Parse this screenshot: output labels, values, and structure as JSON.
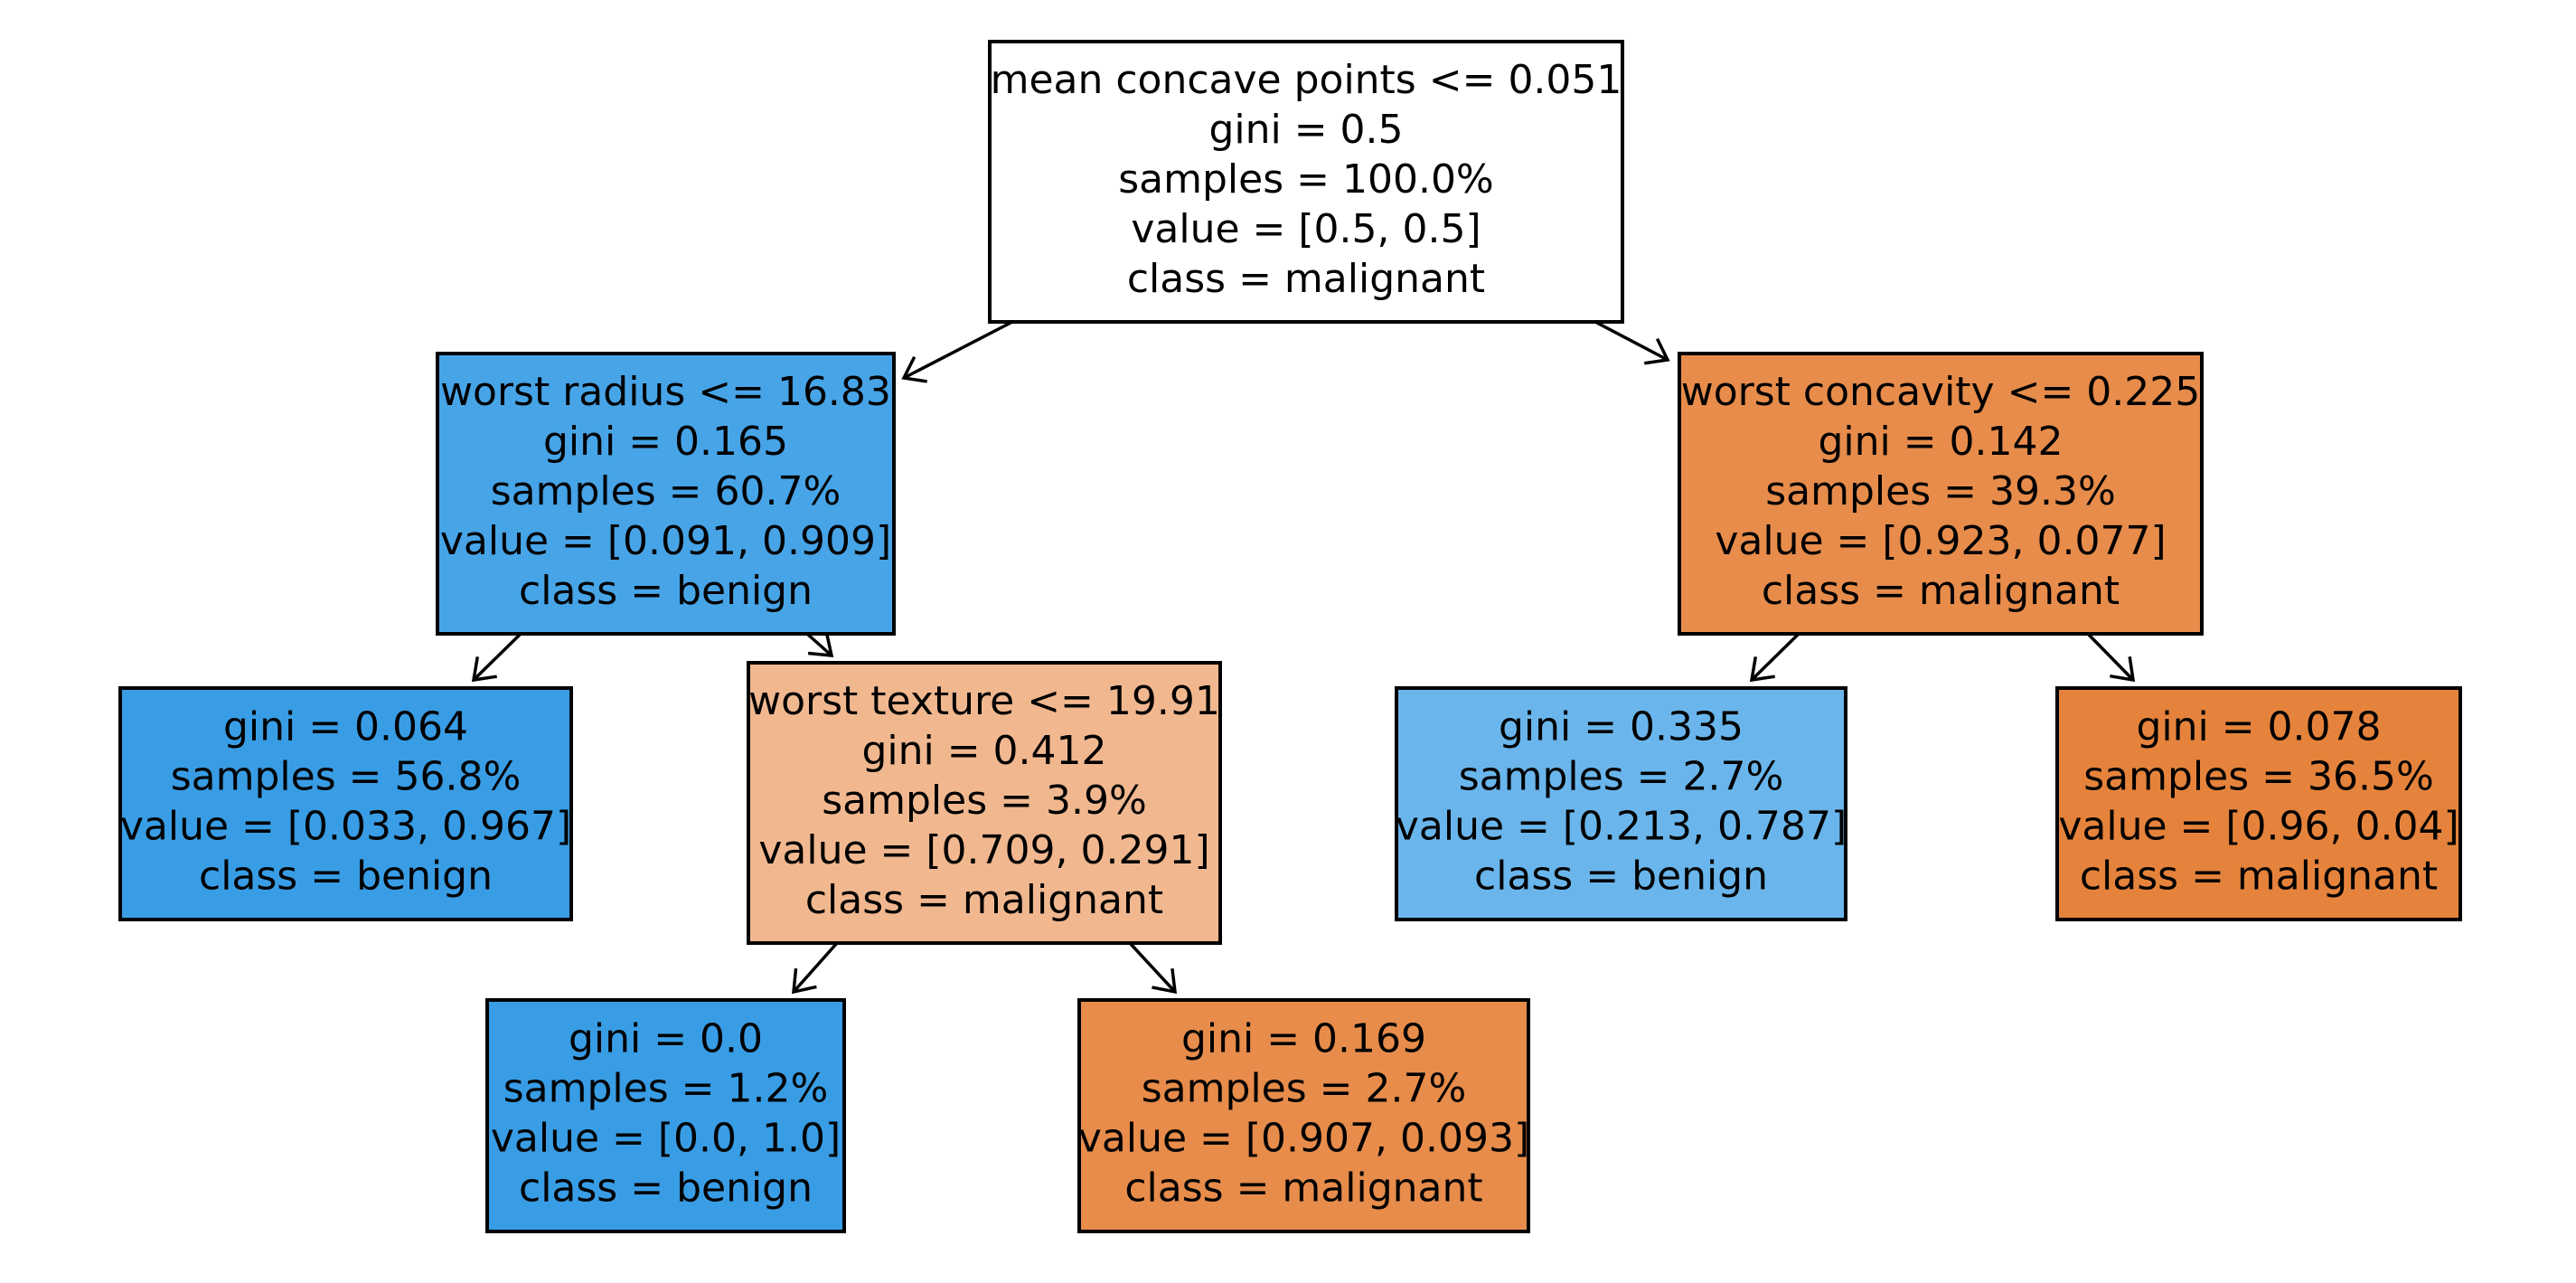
{
  "colors": {
    "benign_strong": "#399de5",
    "benign_mid": "#47a4e7",
    "benign_light": "#6ab6ec",
    "malignant_strong": "#e5833c",
    "malignant_mid": "#e78c4b",
    "malignant_light": "#f1b890",
    "neutral": "#ffffff",
    "border": "#000000"
  },
  "tree": {
    "root": {
      "lines": [
        "mean concave points <= 0.051",
        "gini = 0.5",
        "samples = 100.0%",
        "value = [0.5, 0.5]",
        "class = malignant"
      ]
    },
    "left": {
      "lines": [
        "worst radius <= 16.83",
        "gini = 0.165",
        "samples = 60.7%",
        "value = [0.091, 0.909]",
        "class = benign"
      ]
    },
    "right": {
      "lines": [
        "worst concavity <= 0.225",
        "gini = 0.142",
        "samples = 39.3%",
        "value = [0.923, 0.077]",
        "class = malignant"
      ]
    },
    "left_left": {
      "lines": [
        "gini = 0.064",
        "samples = 56.8%",
        "value = [0.033, 0.967]",
        "class = benign"
      ]
    },
    "left_right": {
      "lines": [
        "worst texture <= 19.91",
        "gini = 0.412",
        "samples = 3.9%",
        "value = [0.709, 0.291]",
        "class = malignant"
      ]
    },
    "right_left": {
      "lines": [
        "gini = 0.335",
        "samples = 2.7%",
        "value = [0.213, 0.787]",
        "class = benign"
      ]
    },
    "right_right": {
      "lines": [
        "gini = 0.078",
        "samples = 36.5%",
        "value = [0.96, 0.04]",
        "class = malignant"
      ]
    },
    "left_right_left": {
      "lines": [
        "gini = 0.0",
        "samples = 1.2%",
        "value = [0.0, 1.0]",
        "class = benign"
      ]
    },
    "left_right_right": {
      "lines": [
        "gini = 0.169",
        "samples = 2.7%",
        "value = [0.907, 0.093]",
        "class = malignant"
      ]
    }
  }
}
